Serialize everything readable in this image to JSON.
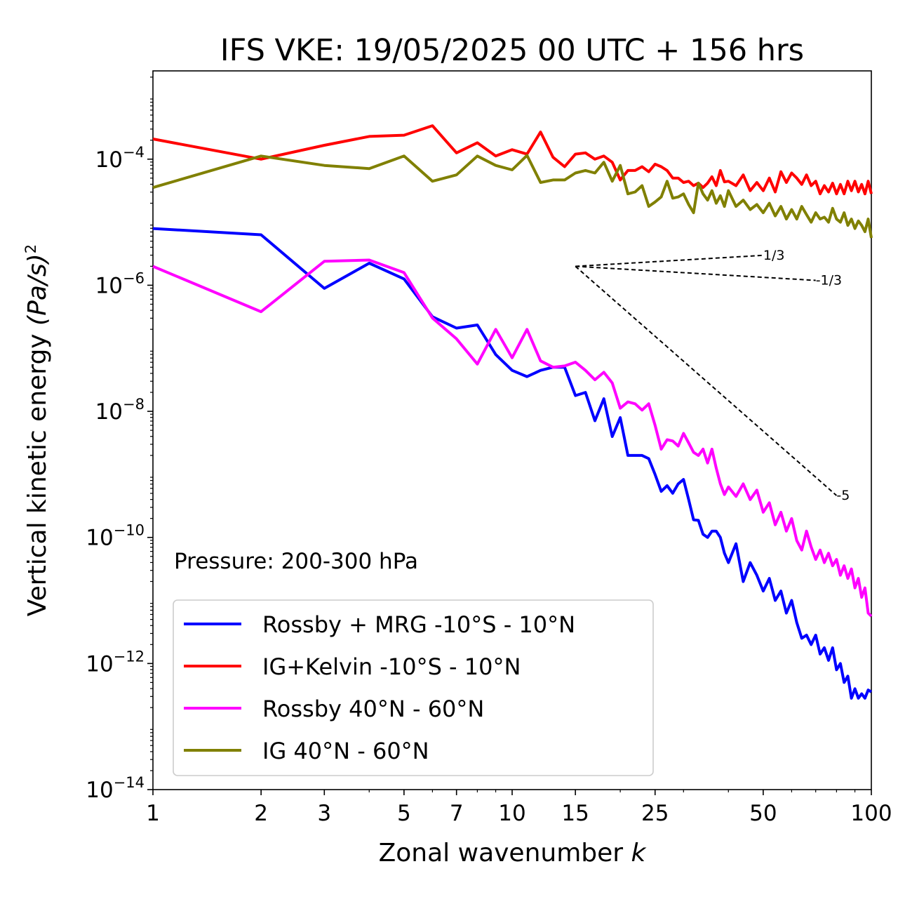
{
  "chart_data": {
    "type": "line",
    "title": "IFS VKE: 19/05/2025 00 UTC + 156 hrs",
    "xlabel": "Zonal wavenumber",
    "xlabel_var": "k",
    "ylabel": "Vertical kinetic energy",
    "ylabel_unit": "(Pa/s)",
    "ylabel_unit_exp": "2",
    "x_scale": "log",
    "y_scale": "log",
    "xlim": [
      1,
      100
    ],
    "ylim_exp": [
      -14,
      -2.6
    ],
    "x_ticks": [
      1,
      2,
      3,
      5,
      7,
      10,
      15,
      25,
      50,
      100
    ],
    "x_tick_labels": [
      "1",
      "2",
      "3",
      "5",
      "7",
      "10",
      "15",
      "25",
      "50",
      "100"
    ],
    "y_tick_exps": [
      -14,
      -12,
      -10,
      -8,
      -6,
      -4
    ],
    "y_tick_labels": [
      {
        "base": "10",
        "exp": "−14"
      },
      {
        "base": "10",
        "exp": "−12"
      },
      {
        "base": "10",
        "exp": "−10"
      },
      {
        "base": "10",
        "exp": "−8"
      },
      {
        "base": "10",
        "exp": "−6"
      },
      {
        "base": "10",
        "exp": "−4"
      }
    ],
    "annotation": "Pressure: 200-300 hPa",
    "legend_position": "lower-left",
    "grid": false,
    "series": [
      {
        "name": "Rossby + MRG -10°S - 10°N",
        "color": "#0000ff",
        "points": [
          [
            1,
            -5.1
          ],
          [
            2,
            -5.2
          ],
          [
            3,
            -6.05
          ],
          [
            4,
            -5.65
          ],
          [
            5,
            -5.9
          ],
          [
            6,
            -6.5
          ],
          [
            7,
            -6.68
          ],
          [
            8,
            -6.63
          ],
          [
            9,
            -7.1
          ],
          [
            10,
            -7.35
          ],
          [
            11,
            -7.45
          ],
          [
            12,
            -7.35
          ],
          [
            13,
            -7.3
          ],
          [
            14,
            -7.3
          ],
          [
            15,
            -7.75
          ],
          [
            16,
            -7.7
          ],
          [
            17,
            -8.15
          ],
          [
            18,
            -7.8
          ],
          [
            19,
            -8.4
          ],
          [
            20,
            -8.1
          ],
          [
            21,
            -8.7
          ],
          [
            22,
            -8.7
          ],
          [
            23,
            -8.7
          ],
          [
            24,
            -8.75
          ],
          [
            25,
            -9.0
          ],
          [
            26,
            -9.27
          ],
          [
            27,
            -9.18
          ],
          [
            28,
            -9.3
          ],
          [
            29,
            -9.15
          ],
          [
            30,
            -9.08
          ],
          [
            31,
            -9.4
          ],
          [
            32,
            -9.72
          ],
          [
            33,
            -9.73
          ],
          [
            34,
            -9.95
          ],
          [
            35,
            -10.0
          ],
          [
            36,
            -9.9
          ],
          [
            37,
            -9.9
          ],
          [
            38,
            -10.0
          ],
          [
            39,
            -10.25
          ],
          [
            40,
            -10.4
          ],
          [
            42,
            -10.1
          ],
          [
            44,
            -10.7
          ],
          [
            46,
            -10.4
          ],
          [
            48,
            -10.6
          ],
          [
            50,
            -10.85
          ],
          [
            52,
            -10.65
          ],
          [
            54,
            -11.0
          ],
          [
            56,
            -10.85
          ],
          [
            58,
            -11.2
          ],
          [
            60,
            -11.0
          ],
          [
            62,
            -11.35
          ],
          [
            64,
            -11.6
          ],
          [
            66,
            -11.55
          ],
          [
            68,
            -11.7
          ],
          [
            70,
            -11.55
          ],
          [
            72,
            -11.85
          ],
          [
            74,
            -11.75
          ],
          [
            76,
            -11.95
          ],
          [
            78,
            -11.75
          ],
          [
            80,
            -12.1
          ],
          [
            82,
            -12.0
          ],
          [
            84,
            -12.3
          ],
          [
            86,
            -12.2
          ],
          [
            88,
            -12.55
          ],
          [
            90,
            -12.4
          ],
          [
            92,
            -12.55
          ],
          [
            94,
            -12.48
          ],
          [
            96,
            -12.55
          ],
          [
            98,
            -12.42
          ],
          [
            100,
            -12.45
          ]
        ]
      },
      {
        "name": "IG+Kelvin -10°S - 10°N",
        "color": "#ff0000",
        "points": [
          [
            1,
            -3.68
          ],
          [
            2,
            -4.0
          ],
          [
            3,
            -3.78
          ],
          [
            4,
            -3.64
          ],
          [
            5,
            -3.62
          ],
          [
            6,
            -3.47
          ],
          [
            7,
            -3.9
          ],
          [
            8,
            -3.74
          ],
          [
            9,
            -3.95
          ],
          [
            10,
            -3.85
          ],
          [
            11,
            -3.92
          ],
          [
            12,
            -3.57
          ],
          [
            13,
            -3.97
          ],
          [
            14,
            -4.12
          ],
          [
            15,
            -3.92
          ],
          [
            16,
            -3.9
          ],
          [
            17,
            -4.0
          ],
          [
            18,
            -3.95
          ],
          [
            19,
            -4.05
          ],
          [
            20,
            -4.33
          ],
          [
            21,
            -4.18
          ],
          [
            22,
            -4.18
          ],
          [
            23,
            -4.12
          ],
          [
            24,
            -4.2
          ],
          [
            25,
            -4.08
          ],
          [
            26,
            -4.12
          ],
          [
            27,
            -4.18
          ],
          [
            28,
            -4.3
          ],
          [
            29,
            -4.3
          ],
          [
            30,
            -4.37
          ],
          [
            31,
            -4.35
          ],
          [
            32,
            -4.42
          ],
          [
            33,
            -4.38
          ],
          [
            34,
            -4.45
          ],
          [
            35,
            -4.38
          ],
          [
            36,
            -4.28
          ],
          [
            37,
            -4.42
          ],
          [
            38,
            -4.18
          ],
          [
            39,
            -4.36
          ],
          [
            40,
            -4.35
          ],
          [
            42,
            -4.42
          ],
          [
            44,
            -4.25
          ],
          [
            46,
            -4.5
          ],
          [
            48,
            -4.37
          ],
          [
            50,
            -4.5
          ],
          [
            52,
            -4.3
          ],
          [
            54,
            -4.52
          ],
          [
            56,
            -4.2
          ],
          [
            58,
            -4.37
          ],
          [
            60,
            -4.22
          ],
          [
            62,
            -4.3
          ],
          [
            64,
            -4.4
          ],
          [
            66,
            -4.25
          ],
          [
            68,
            -4.42
          ],
          [
            70,
            -4.35
          ],
          [
            72,
            -4.55
          ],
          [
            74,
            -4.42
          ],
          [
            76,
            -4.52
          ],
          [
            78,
            -4.38
          ],
          [
            80,
            -4.55
          ],
          [
            82,
            -4.4
          ],
          [
            84,
            -4.55
          ],
          [
            86,
            -4.35
          ],
          [
            88,
            -4.5
          ],
          [
            90,
            -4.35
          ],
          [
            92,
            -4.52
          ],
          [
            94,
            -4.4
          ],
          [
            96,
            -4.55
          ],
          [
            98,
            -4.35
          ],
          [
            100,
            -4.55
          ]
        ]
      },
      {
        "name": "Rossby 40°N - 60°N",
        "color": "#ff00ff",
        "points": [
          [
            1,
            -5.7
          ],
          [
            2,
            -6.42
          ],
          [
            3,
            -5.62
          ],
          [
            4,
            -5.6
          ],
          [
            5,
            -5.8
          ],
          [
            6,
            -6.52
          ],
          [
            7,
            -6.85
          ],
          [
            8,
            -7.25
          ],
          [
            9,
            -6.7
          ],
          [
            10,
            -7.15
          ],
          [
            11,
            -6.7
          ],
          [
            12,
            -7.2
          ],
          [
            13,
            -7.3
          ],
          [
            14,
            -7.28
          ],
          [
            15,
            -7.22
          ],
          [
            16,
            -7.35
          ],
          [
            17,
            -7.5
          ],
          [
            18,
            -7.38
          ],
          [
            19,
            -7.55
          ],
          [
            20,
            -7.95
          ],
          [
            21,
            -7.85
          ],
          [
            22,
            -7.88
          ],
          [
            23,
            -7.98
          ],
          [
            24,
            -7.88
          ],
          [
            25,
            -8.22
          ],
          [
            26,
            -8.6
          ],
          [
            27,
            -8.45
          ],
          [
            28,
            -8.47
          ],
          [
            29,
            -8.55
          ],
          [
            30,
            -8.35
          ],
          [
            31,
            -8.5
          ],
          [
            32,
            -8.65
          ],
          [
            33,
            -8.7
          ],
          [
            34,
            -8.6
          ],
          [
            35,
            -8.82
          ],
          [
            36,
            -8.6
          ],
          [
            37,
            -8.9
          ],
          [
            38,
            -9.15
          ],
          [
            39,
            -9.32
          ],
          [
            40,
            -9.2
          ],
          [
            42,
            -9.35
          ],
          [
            44,
            -9.15
          ],
          [
            46,
            -9.4
          ],
          [
            48,
            -9.25
          ],
          [
            50,
            -9.6
          ],
          [
            52,
            -9.45
          ],
          [
            54,
            -9.8
          ],
          [
            56,
            -9.6
          ],
          [
            58,
            -9.9
          ],
          [
            60,
            -9.7
          ],
          [
            62,
            -10.05
          ],
          [
            64,
            -10.2
          ],
          [
            66,
            -9.9
          ],
          [
            68,
            -10.15
          ],
          [
            70,
            -10.35
          ],
          [
            72,
            -10.2
          ],
          [
            74,
            -10.4
          ],
          [
            76,
            -10.25
          ],
          [
            78,
            -10.45
          ],
          [
            80,
            -10.35
          ],
          [
            82,
            -10.6
          ],
          [
            84,
            -10.45
          ],
          [
            86,
            -10.65
          ],
          [
            88,
            -10.5
          ],
          [
            90,
            -10.8
          ],
          [
            92,
            -10.65
          ],
          [
            94,
            -10.95
          ],
          [
            96,
            -10.8
          ],
          [
            98,
            -11.2
          ],
          [
            100,
            -11.25
          ]
        ]
      },
      {
        "name": "IG 40°N - 60°N",
        "color": "#808000",
        "points": [
          [
            1,
            -4.45
          ],
          [
            2,
            -3.95
          ],
          [
            3,
            -4.1
          ],
          [
            4,
            -4.15
          ],
          [
            5,
            -3.95
          ],
          [
            6,
            -4.35
          ],
          [
            7,
            -4.25
          ],
          [
            8,
            -3.95
          ],
          [
            9,
            -4.1
          ],
          [
            10,
            -4.17
          ],
          [
            11,
            -3.94
          ],
          [
            12,
            -4.37
          ],
          [
            13,
            -4.33
          ],
          [
            14,
            -4.33
          ],
          [
            15,
            -4.22
          ],
          [
            16,
            -4.18
          ],
          [
            17,
            -4.22
          ],
          [
            18,
            -4.05
          ],
          [
            19,
            -4.35
          ],
          [
            20,
            -4.1
          ],
          [
            21,
            -4.55
          ],
          [
            22,
            -4.52
          ],
          [
            23,
            -4.42
          ],
          [
            24,
            -4.75
          ],
          [
            25,
            -4.68
          ],
          [
            26,
            -4.6
          ],
          [
            27,
            -4.35
          ],
          [
            28,
            -4.62
          ],
          [
            29,
            -4.6
          ],
          [
            30,
            -4.55
          ],
          [
            31,
            -4.72
          ],
          [
            32,
            -4.85
          ],
          [
            33,
            -4.38
          ],
          [
            34,
            -4.55
          ],
          [
            35,
            -4.65
          ],
          [
            36,
            -4.5
          ],
          [
            37,
            -4.7
          ],
          [
            38,
            -4.58
          ],
          [
            39,
            -4.75
          ],
          [
            40,
            -4.5
          ],
          [
            42,
            -4.75
          ],
          [
            44,
            -4.65
          ],
          [
            46,
            -4.8
          ],
          [
            48,
            -4.72
          ],
          [
            50,
            -4.85
          ],
          [
            52,
            -4.7
          ],
          [
            54,
            -4.9
          ],
          [
            56,
            -4.75
          ],
          [
            58,
            -4.95
          ],
          [
            60,
            -4.8
          ],
          [
            62,
            -4.95
          ],
          [
            64,
            -4.75
          ],
          [
            66,
            -4.88
          ],
          [
            68,
            -5.0
          ],
          [
            70,
            -4.85
          ],
          [
            72,
            -4.95
          ],
          [
            74,
            -4.92
          ],
          [
            76,
            -5.0
          ],
          [
            78,
            -4.78
          ],
          [
            80,
            -4.95
          ],
          [
            82,
            -5.0
          ],
          [
            84,
            -4.85
          ],
          [
            86,
            -5.05
          ],
          [
            88,
            -4.95
          ],
          [
            90,
            -5.1
          ],
          [
            92,
            -4.98
          ],
          [
            94,
            -5.05
          ],
          [
            96,
            -5.15
          ],
          [
            98,
            -4.95
          ],
          [
            100,
            -5.25
          ]
        ]
      }
    ],
    "reference_slopes": [
      {
        "label": "1/3",
        "slope": 0.3333,
        "x0": 15,
        "y0_exp": -5.7,
        "x1": 50
      },
      {
        "label": "-1/3",
        "slope": -0.3333,
        "x0": 15,
        "y0_exp": -5.7,
        "x1": 70
      },
      {
        "label": "-5",
        "slope": -5,
        "x0": 15,
        "y0_exp": -5.7,
        "x1": 80
      }
    ]
  }
}
